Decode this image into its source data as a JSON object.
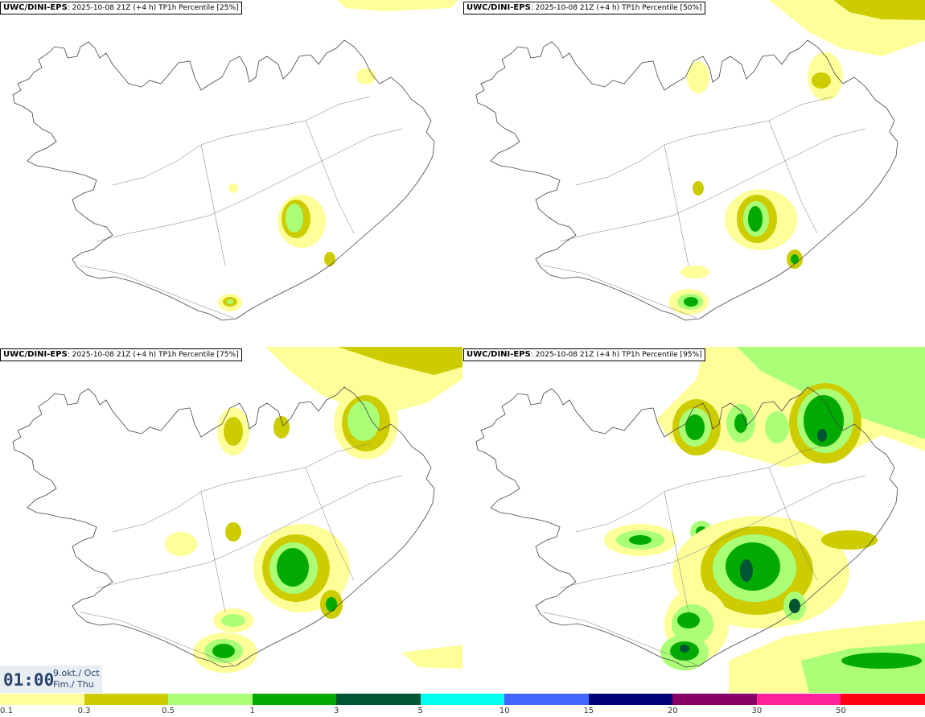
{
  "panels": [
    {
      "id": "p25",
      "model": "UWC/DINI-EPS",
      "run": "2025-10-08 21Z",
      "lead": "(+4 h)",
      "product": "TP1h Percentile [25%]"
    },
    {
      "id": "p50",
      "model": "UWC/DINI-EPS",
      "run": "2025-10-08 21Z",
      "lead": "(+4 h)",
      "product": "TP1h Percentile [50%]"
    },
    {
      "id": "p75",
      "model": "UWC/DINI-EPS",
      "run": "2025-10-08 21Z",
      "lead": "(+4 h)",
      "product": "TP1h Percentile [75%]"
    },
    {
      "id": "p95",
      "model": "UWC/DINI-EPS",
      "run": "2025-10-08 21Z",
      "lead": "(+4 h)",
      "product": "TP1h Percentile [95%]"
    }
  ],
  "time": {
    "clock": "01:00",
    "date_line1": "9.okt./ Oct",
    "date_line2": "Fim./ Thu"
  },
  "legend": {
    "colors": [
      "#ffff99",
      "#cccc00",
      "#aaff77",
      "#00aa00",
      "#005533",
      "#00ffee",
      "#4466ff",
      "#000077",
      "#880066",
      "#ff2299",
      "#ff0011"
    ],
    "ticks": [
      "0.1",
      "0.3",
      "0.5",
      "1",
      "3",
      "5",
      "10",
      "15",
      "20",
      "30",
      "50"
    ]
  }
}
